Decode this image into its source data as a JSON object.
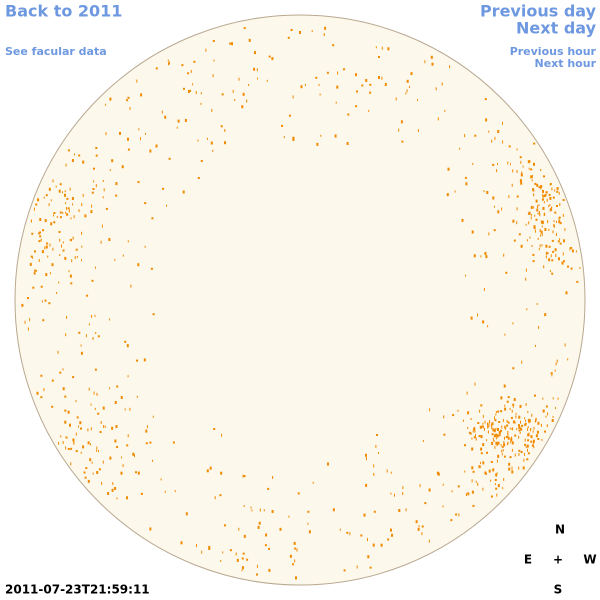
{
  "navigation": {
    "back_to_year": "Back to 2011",
    "previous_day": "Previous day",
    "next_day": "Next day",
    "facular_data": "See facular data",
    "previous_hour": "Previous hour",
    "next_hour": "Next hour"
  },
  "timestamp": "2011-07-23T21:59:11",
  "compass": {
    "north": "N",
    "east": "E",
    "center": "+",
    "west": "W",
    "south": "S"
  }
}
